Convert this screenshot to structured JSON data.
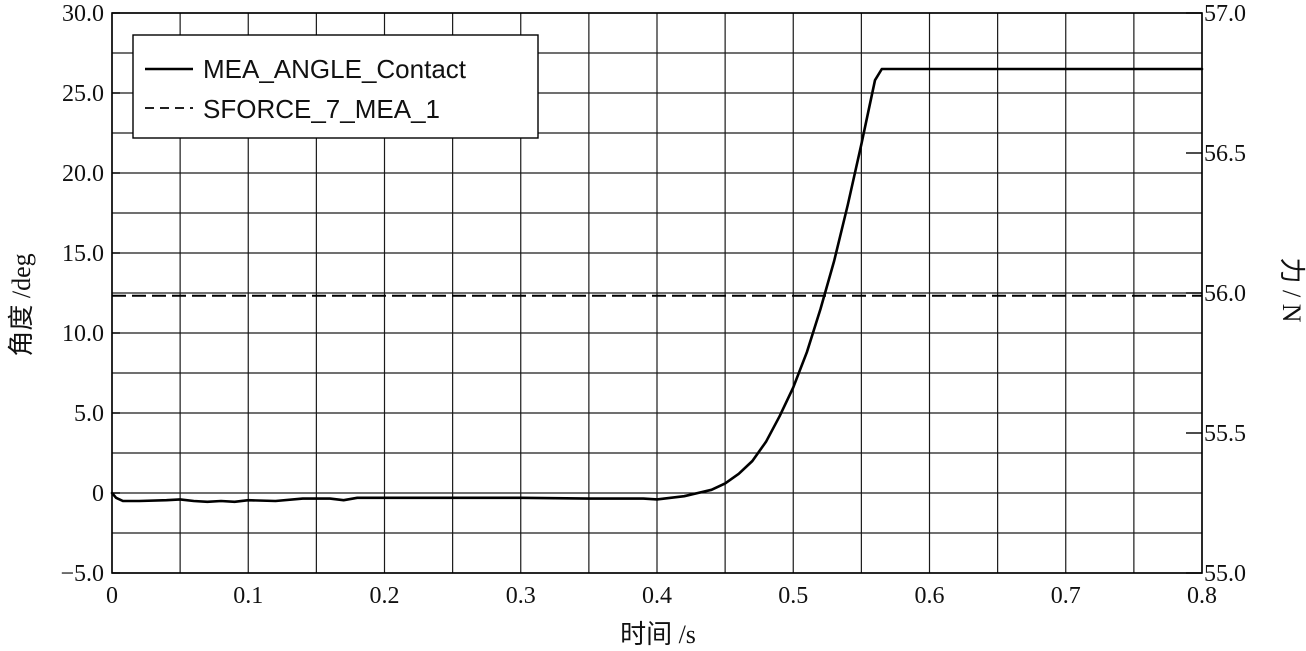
{
  "chart_data": {
    "type": "line",
    "xlabel": "时间 /s",
    "ylabel_left": "角度 /deg",
    "ylabel_right": "力 / N",
    "xlim": [
      0,
      0.8
    ],
    "ylim_left": [
      -5.0,
      30.0
    ],
    "ylim_right": [
      55.0,
      57.0
    ],
    "x_ticks": [
      "0",
      "0.1",
      "0.2",
      "0.3",
      "0.4",
      "0.5",
      "0.6",
      "0.7",
      "0.8"
    ],
    "y_left_ticks": [
      "−5.0",
      "0",
      "5.0",
      "10.0",
      "15.0",
      "20.0",
      "25.0",
      "30.0"
    ],
    "y_right_ticks": [
      "55.0",
      "55.5",
      "56.0",
      "56.5",
      "57.0"
    ],
    "grid": true,
    "legend_position": "top-left",
    "series": [
      {
        "name": "MEA_ANGLE_Contact",
        "axis": "left",
        "style": "solid",
        "color": "#000000",
        "points": [
          [
            0.0,
            0.0
          ],
          [
            0.003,
            -0.3
          ],
          [
            0.008,
            -0.5
          ],
          [
            0.02,
            -0.5
          ],
          [
            0.04,
            -0.45
          ],
          [
            0.05,
            -0.4
          ],
          [
            0.06,
            -0.5
          ],
          [
            0.07,
            -0.55
          ],
          [
            0.08,
            -0.5
          ],
          [
            0.09,
            -0.55
          ],
          [
            0.1,
            -0.45
          ],
          [
            0.12,
            -0.5
          ],
          [
            0.14,
            -0.35
          ],
          [
            0.16,
            -0.35
          ],
          [
            0.17,
            -0.45
          ],
          [
            0.18,
            -0.3
          ],
          [
            0.25,
            -0.3
          ],
          [
            0.3,
            -0.3
          ],
          [
            0.35,
            -0.35
          ],
          [
            0.39,
            -0.35
          ],
          [
            0.4,
            -0.4
          ],
          [
            0.41,
            -0.3
          ],
          [
            0.42,
            -0.2
          ],
          [
            0.43,
            0.0
          ],
          [
            0.44,
            0.2
          ],
          [
            0.45,
            0.6
          ],
          [
            0.46,
            1.2
          ],
          [
            0.47,
            2.0
          ],
          [
            0.48,
            3.2
          ],
          [
            0.49,
            4.8
          ],
          [
            0.5,
            6.6
          ],
          [
            0.51,
            8.8
          ],
          [
            0.52,
            11.5
          ],
          [
            0.53,
            14.5
          ],
          [
            0.54,
            18.0
          ],
          [
            0.55,
            21.8
          ],
          [
            0.555,
            23.8
          ],
          [
            0.56,
            25.8
          ],
          [
            0.565,
            26.5
          ],
          [
            0.57,
            26.5
          ],
          [
            0.8,
            26.5
          ]
        ]
      },
      {
        "name": "SFORCE_7_MEA_1",
        "axis": "right",
        "style": "dashed",
        "color": "#000000",
        "points": [
          [
            0.0,
            55.99
          ],
          [
            0.8,
            55.99
          ]
        ]
      }
    ]
  }
}
